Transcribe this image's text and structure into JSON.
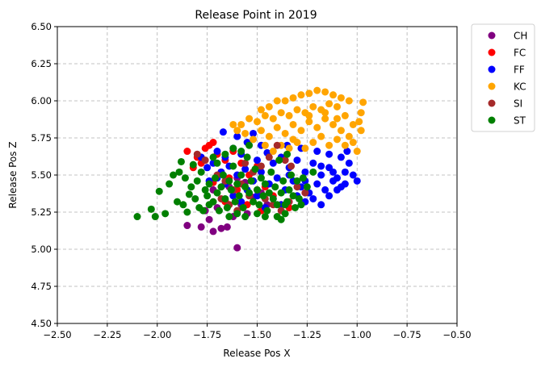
{
  "chart_data": {
    "type": "scatter",
    "title": "Release Point in 2019",
    "xlabel": "Release Pos X",
    "ylabel": "Release Pos Z",
    "xlim": [
      -2.5,
      -0.5
    ],
    "ylim": [
      4.5,
      6.5
    ],
    "x_ticks": [
      -2.5,
      -2.25,
      -2.0,
      -1.75,
      -1.5,
      -1.25,
      -1.0,
      -0.75,
      -0.5
    ],
    "x_tick_labels": [
      "−2.50",
      "−2.25",
      "−2.00",
      "−1.75",
      "−1.50",
      "−1.25",
      "−1.00",
      "−0.75",
      "−0.50"
    ],
    "y_ticks": [
      4.5,
      4.75,
      5.0,
      5.25,
      5.5,
      5.75,
      6.0,
      6.25,
      6.5
    ],
    "y_tick_labels": [
      "4.50",
      "4.75",
      "5.00",
      "5.25",
      "5.50",
      "5.75",
      "6.00",
      "6.25",
      "6.50"
    ],
    "grid": true,
    "legend_position": "outside-top-right",
    "series": [
      {
        "name": "CH",
        "color": "#800080",
        "points": [
          [
            -1.85,
            5.16
          ],
          [
            -1.78,
            5.15
          ],
          [
            -1.72,
            5.12
          ],
          [
            -1.68,
            5.14
          ],
          [
            -1.65,
            5.15
          ],
          [
            -1.6,
            5.01
          ],
          [
            -1.74,
            5.2
          ],
          [
            -1.62,
            5.22
          ],
          [
            -1.55,
            5.24
          ],
          [
            -1.7,
            5.28
          ],
          [
            -1.58,
            5.3
          ],
          [
            -1.66,
            5.33
          ],
          [
            -1.52,
            5.35
          ],
          [
            -1.48,
            5.38
          ],
          [
            -1.72,
            5.4
          ],
          [
            -1.64,
            5.42
          ],
          [
            -1.56,
            5.45
          ],
          [
            -1.6,
            5.48
          ],
          [
            -1.45,
            5.3
          ],
          [
            -1.76,
            5.26
          ]
        ]
      },
      {
        "name": "FC",
        "color": "#ff0000",
        "points": [
          [
            -1.85,
            5.66
          ],
          [
            -1.8,
            5.62
          ],
          [
            -1.76,
            5.68
          ],
          [
            -1.72,
            5.72
          ],
          [
            -1.74,
            5.7
          ],
          [
            -1.78,
            5.58
          ],
          [
            -1.82,
            5.55
          ],
          [
            -1.7,
            5.64
          ],
          [
            -1.66,
            5.6
          ],
          [
            -1.68,
            5.52
          ],
          [
            -1.62,
            5.66
          ],
          [
            -1.58,
            5.58
          ],
          [
            -1.64,
            5.48
          ],
          [
            -1.72,
            5.45
          ],
          [
            -1.6,
            5.4
          ],
          [
            -1.54,
            5.5
          ],
          [
            -1.5,
            5.56
          ],
          [
            -1.46,
            5.42
          ],
          [
            -1.42,
            5.36
          ],
          [
            -1.38,
            5.3
          ],
          [
            -1.34,
            5.28
          ],
          [
            -1.55,
            5.3
          ],
          [
            -1.48,
            5.26
          ],
          [
            -1.66,
            5.32
          ]
        ]
      },
      {
        "name": "FF",
        "color": "#0000ff",
        "points": [
          [
            -1.67,
            5.79
          ],
          [
            -1.6,
            5.76
          ],
          [
            -1.55,
            5.72
          ],
          [
            -1.52,
            5.78
          ],
          [
            -1.48,
            5.7
          ],
          [
            -1.62,
            5.68
          ],
          [
            -1.7,
            5.66
          ],
          [
            -1.66,
            5.62
          ],
          [
            -1.58,
            5.64
          ],
          [
            -1.5,
            5.6
          ],
          [
            -1.45,
            5.65
          ],
          [
            -1.42,
            5.58
          ],
          [
            -1.38,
            5.62
          ],
          [
            -1.34,
            5.55
          ],
          [
            -1.3,
            5.6
          ],
          [
            -1.26,
            5.52
          ],
          [
            -1.22,
            5.58
          ],
          [
            -1.18,
            5.5
          ],
          [
            -1.14,
            5.55
          ],
          [
            -1.1,
            5.48
          ],
          [
            -1.06,
            5.52
          ],
          [
            -1.04,
            5.58
          ],
          [
            -1.02,
            5.5
          ],
          [
            -1.08,
            5.42
          ],
          [
            -1.12,
            5.46
          ],
          [
            -1.16,
            5.4
          ],
          [
            -1.2,
            5.44
          ],
          [
            -1.24,
            5.38
          ],
          [
            -1.28,
            5.42
          ],
          [
            -1.32,
            5.46
          ],
          [
            -1.36,
            5.4
          ],
          [
            -1.4,
            5.48
          ],
          [
            -1.44,
            5.44
          ],
          [
            -1.48,
            5.52
          ],
          [
            -1.52,
            5.46
          ],
          [
            -1.56,
            5.54
          ],
          [
            -1.6,
            5.5
          ],
          [
            -1.64,
            5.56
          ],
          [
            -1.68,
            5.52
          ],
          [
            -1.72,
            5.58
          ],
          [
            -1.75,
            5.55
          ],
          [
            -1.78,
            5.62
          ],
          [
            -1.3,
            5.36
          ],
          [
            -1.26,
            5.32
          ],
          [
            -1.22,
            5.34
          ],
          [
            -1.18,
            5.3
          ],
          [
            -1.14,
            5.36
          ],
          [
            -1.1,
            5.4
          ],
          [
            -1.06,
            5.44
          ],
          [
            -1.0,
            5.46
          ],
          [
            -1.35,
            5.7
          ],
          [
            -1.28,
            5.68
          ],
          [
            -1.2,
            5.66
          ],
          [
            -1.14,
            5.64
          ],
          [
            -1.08,
            5.62
          ],
          [
            -1.05,
            5.66
          ],
          [
            -1.42,
            5.34
          ],
          [
            -1.38,
            5.3
          ],
          [
            -1.46,
            5.28
          ],
          [
            -1.5,
            5.36
          ],
          [
            -1.55,
            5.4
          ],
          [
            -1.58,
            5.32
          ],
          [
            -1.62,
            5.36
          ],
          [
            -1.66,
            5.44
          ],
          [
            -1.7,
            5.48
          ],
          [
            -1.74,
            5.46
          ],
          [
            -1.34,
            5.5
          ],
          [
            -1.26,
            5.46
          ],
          [
            -1.18,
            5.56
          ],
          [
            -1.12,
            5.52
          ]
        ]
      },
      {
        "name": "KC",
        "color": "#ffa500",
        "points": [
          [
            -1.2,
            6.07
          ],
          [
            -1.16,
            6.06
          ],
          [
            -1.24,
            6.05
          ],
          [
            -1.28,
            6.04
          ],
          [
            -1.12,
            6.04
          ],
          [
            -1.08,
            6.02
          ],
          [
            -1.32,
            6.02
          ],
          [
            -1.36,
            6.0
          ],
          [
            -1.4,
            6.0
          ],
          [
            -1.04,
            6.0
          ],
          [
            -0.97,
            5.99
          ],
          [
            -0.98,
            5.92
          ],
          [
            -0.99,
            5.86
          ],
          [
            -0.98,
            5.8
          ],
          [
            -1.02,
            5.84
          ],
          [
            -1.06,
            5.9
          ],
          [
            -1.1,
            5.96
          ],
          [
            -1.14,
            5.98
          ],
          [
            -1.18,
            5.94
          ],
          [
            -1.22,
            5.96
          ],
          [
            -1.26,
            5.92
          ],
          [
            -1.3,
            5.94
          ],
          [
            -1.34,
            5.9
          ],
          [
            -1.38,
            5.92
          ],
          [
            -1.42,
            5.88
          ],
          [
            -1.46,
            5.9
          ],
          [
            -1.5,
            5.86
          ],
          [
            -1.54,
            5.88
          ],
          [
            -1.58,
            5.84
          ],
          [
            -1.6,
            5.8
          ],
          [
            -1.62,
            5.84
          ],
          [
            -1.56,
            5.78
          ],
          [
            -1.52,
            5.74
          ],
          [
            -1.48,
            5.8
          ],
          [
            -1.44,
            5.76
          ],
          [
            -1.4,
            5.82
          ],
          [
            -1.36,
            5.78
          ],
          [
            -1.32,
            5.84
          ],
          [
            -1.28,
            5.8
          ],
          [
            -1.24,
            5.86
          ],
          [
            -1.2,
            5.82
          ],
          [
            -1.16,
            5.88
          ],
          [
            -1.12,
            5.84
          ],
          [
            -1.08,
            5.8
          ],
          [
            -1.04,
            5.76
          ],
          [
            -1.06,
            5.7
          ],
          [
            -1.1,
            5.74
          ],
          [
            -1.14,
            5.7
          ],
          [
            -1.18,
            5.76
          ],
          [
            -1.22,
            5.72
          ],
          [
            -1.26,
            5.68
          ],
          [
            -1.3,
            5.72
          ],
          [
            -1.34,
            5.68
          ],
          [
            -1.38,
            5.7
          ],
          [
            -1.42,
            5.66
          ],
          [
            -1.46,
            5.7
          ],
          [
            -1.02,
            5.72
          ],
          [
            -1.0,
            5.66
          ],
          [
            -1.44,
            5.96
          ],
          [
            -1.48,
            5.94
          ],
          [
            -1.16,
            5.92
          ],
          [
            -1.24,
            5.9
          ],
          [
            -1.1,
            5.88
          ],
          [
            -1.32,
            5.74
          ]
        ]
      },
      {
        "name": "SI",
        "color": "#a52a2a",
        "points": [
          [
            -1.8,
            5.64
          ],
          [
            -1.76,
            5.6
          ],
          [
            -1.7,
            5.5
          ],
          [
            -1.66,
            5.46
          ],
          [
            -1.62,
            5.4
          ],
          [
            -1.58,
            5.44
          ],
          [
            -1.54,
            5.36
          ],
          [
            -1.5,
            5.4
          ],
          [
            -1.46,
            5.34
          ],
          [
            -1.42,
            5.3
          ],
          [
            -1.4,
            5.7
          ],
          [
            -1.36,
            5.6
          ],
          [
            -1.33,
            5.56
          ],
          [
            -1.3,
            5.42
          ],
          [
            -1.26,
            5.38
          ],
          [
            -1.44,
            5.62
          ],
          [
            -1.48,
            5.56
          ],
          [
            -1.52,
            5.52
          ],
          [
            -1.56,
            5.58
          ],
          [
            -1.6,
            5.26
          ],
          [
            -1.64,
            5.3
          ],
          [
            -1.68,
            5.34
          ],
          [
            -1.38,
            5.26
          ],
          [
            -1.34,
            5.32
          ]
        ]
      },
      {
        "name": "ST",
        "color": "#008000",
        "points": [
          [
            -2.1,
            5.22
          ],
          [
            -2.03,
            5.27
          ],
          [
            -2.01,
            5.22
          ],
          [
            -1.99,
            5.39
          ],
          [
            -1.96,
            5.24
          ],
          [
            -1.94,
            5.44
          ],
          [
            -1.92,
            5.5
          ],
          [
            -1.9,
            5.32
          ],
          [
            -1.89,
            5.52
          ],
          [
            -1.88,
            5.59
          ],
          [
            -1.87,
            5.3
          ],
          [
            -1.86,
            5.48
          ],
          [
            -1.85,
            5.25
          ],
          [
            -1.84,
            5.37
          ],
          [
            -1.83,
            5.42
          ],
          [
            -1.82,
            5.57
          ],
          [
            -1.81,
            5.34
          ],
          [
            -1.8,
            5.46
          ],
          [
            -1.79,
            5.28
          ],
          [
            -1.78,
            5.52
          ],
          [
            -1.76,
            5.4
          ],
          [
            -1.75,
            5.36
          ],
          [
            -1.74,
            5.44
          ],
          [
            -1.72,
            5.32
          ],
          [
            -1.71,
            5.48
          ],
          [
            -1.7,
            5.38
          ],
          [
            -1.69,
            5.26
          ],
          [
            -1.68,
            5.42
          ],
          [
            -1.67,
            5.5
          ],
          [
            -1.66,
            5.34
          ],
          [
            -1.65,
            5.28
          ],
          [
            -1.64,
            5.46
          ],
          [
            -1.63,
            5.4
          ],
          [
            -1.62,
            5.56
          ],
          [
            -1.61,
            5.32
          ],
          [
            -1.6,
            5.44
          ],
          [
            -1.59,
            5.36
          ],
          [
            -1.58,
            5.5
          ],
          [
            -1.57,
            5.28
          ],
          [
            -1.56,
            5.42
          ],
          [
            -1.55,
            5.62
          ],
          [
            -1.54,
            5.38
          ],
          [
            -1.53,
            5.46
          ],
          [
            -1.52,
            5.32
          ],
          [
            -1.51,
            5.54
          ],
          [
            -1.5,
            5.4
          ],
          [
            -1.49,
            5.3
          ],
          [
            -1.48,
            5.48
          ],
          [
            -1.47,
            5.36
          ],
          [
            -1.46,
            5.44
          ],
          [
            -1.45,
            5.26
          ],
          [
            -1.44,
            5.38
          ],
          [
            -1.43,
            5.52
          ],
          [
            -1.42,
            5.34
          ],
          [
            -1.41,
            5.42
          ],
          [
            -1.4,
            5.3
          ],
          [
            -1.39,
            5.6
          ],
          [
            -1.38,
            5.38
          ],
          [
            -1.37,
            5.46
          ],
          [
            -1.36,
            5.24
          ],
          [
            -1.35,
            5.32
          ],
          [
            -1.34,
            5.4
          ],
          [
            -1.33,
            5.5
          ],
          [
            -1.32,
            5.36
          ],
          [
            -1.31,
            5.28
          ],
          [
            -1.3,
            5.46
          ],
          [
            -1.29,
            5.34
          ],
          [
            -1.28,
            5.3
          ],
          [
            -1.27,
            5.48
          ],
          [
            -1.25,
            5.42
          ],
          [
            -1.22,
            5.52
          ],
          [
            -1.35,
            5.64
          ],
          [
            -1.58,
            5.66
          ],
          [
            -1.62,
            5.68
          ],
          [
            -1.54,
            5.7
          ],
          [
            -1.66,
            5.64
          ],
          [
            -1.7,
            5.58
          ],
          [
            -1.72,
            5.62
          ],
          [
            -1.38,
            5.2
          ],
          [
            -1.4,
            5.22
          ],
          [
            -1.36,
            5.3
          ],
          [
            -1.6,
            5.24
          ],
          [
            -1.64,
            5.22
          ],
          [
            -1.56,
            5.22
          ],
          [
            -1.5,
            5.24
          ],
          [
            -1.46,
            5.22
          ],
          [
            -1.74,
            5.3
          ],
          [
            -1.77,
            5.26
          ]
        ]
      }
    ]
  }
}
